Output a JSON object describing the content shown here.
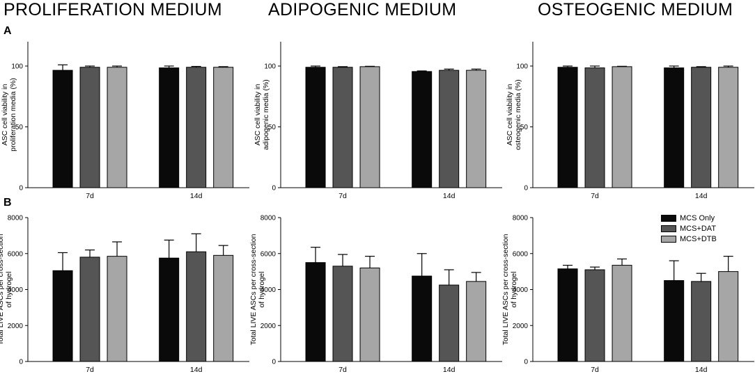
{
  "column_titles": [
    "PROLIFERATION MEDIUM",
    "ADIPOGENIC MEDIUM",
    "OSTEOGENIC MEDIUM"
  ],
  "panel_labels": [
    "A",
    "B"
  ],
  "legend": {
    "entries": [
      {
        "label": "MCS Only",
        "color": "#0a0a0a"
      },
      {
        "label": "MCS+DAT",
        "color": "#555555"
      },
      {
        "label": "MCS+DTB",
        "color": "#a6a6a6"
      }
    ]
  },
  "chart_data": [
    {
      "type": "bar",
      "row": "A",
      "column": "PROLIFERATION MEDIUM",
      "ylabel": [
        "ASC cell viability in",
        "proliferation media (%)"
      ],
      "categories": [
        "7d",
        "14d"
      ],
      "ylim": [
        0,
        120
      ],
      "yticks": [
        0,
        50,
        100
      ],
      "series": [
        {
          "name": "MCS Only",
          "values": [
            96.5,
            98.5
          ],
          "errors": [
            4.5,
            1.5
          ]
        },
        {
          "name": "MCS+DAT",
          "values": [
            99,
            99
          ],
          "errors": [
            1,
            0.7
          ]
        },
        {
          "name": "MCS+DTB",
          "values": [
            99,
            99
          ],
          "errors": [
            1,
            0.5
          ]
        }
      ]
    },
    {
      "type": "bar",
      "row": "A",
      "column": "ADIPOGENIC MEDIUM",
      "ylabel": [
        "ASC cell viability in",
        "adipogenic media (%)"
      ],
      "categories": [
        "7d",
        "14d"
      ],
      "ylim": [
        0,
        120
      ],
      "yticks": [
        0,
        50,
        100
      ],
      "series": [
        {
          "name": "MCS Only",
          "values": [
            99,
            95.5
          ],
          "errors": [
            1,
            0.5
          ]
        },
        {
          "name": "MCS+DAT",
          "values": [
            99,
            96.5
          ],
          "errors": [
            0.5,
            1
          ]
        },
        {
          "name": "MCS+DTB",
          "values": [
            99.5,
            96.5
          ],
          "errors": [
            0.3,
            1
          ]
        }
      ]
    },
    {
      "type": "bar",
      "row": "A",
      "column": "OSTEOGENIC MEDIUM",
      "ylabel": [
        "ASC cell viability in",
        "osteogenic media (%)"
      ],
      "categories": [
        "7d",
        "14d"
      ],
      "ylim": [
        0,
        120
      ],
      "yticks": [
        0,
        50,
        100
      ],
      "series": [
        {
          "name": "MCS Only",
          "values": [
            99,
            98.5
          ],
          "errors": [
            1,
            1.5
          ]
        },
        {
          "name": "MCS+DAT",
          "values": [
            98.5,
            99
          ],
          "errors": [
            1.5,
            0.5
          ]
        },
        {
          "name": "MCS+DTB",
          "values": [
            99.5,
            99
          ],
          "errors": [
            0.3,
            1
          ]
        }
      ]
    },
    {
      "type": "bar",
      "row": "B",
      "column": "PROLIFERATION MEDIUM",
      "ylabel": [
        "Total LIVE ASCs per cross-section",
        "of hydrogel"
      ],
      "categories": [
        "7d",
        "14d"
      ],
      "ylim": [
        0,
        8000
      ],
      "yticks": [
        0,
        2000,
        4000,
        6000,
        8000
      ],
      "series": [
        {
          "name": "MCS Only",
          "values": [
            5050,
            5750
          ],
          "errors": [
            1000,
            1000
          ]
        },
        {
          "name": "MCS+DAT",
          "values": [
            5800,
            6100
          ],
          "errors": [
            400,
            1000
          ]
        },
        {
          "name": "MCS+DTB",
          "values": [
            5850,
            5900
          ],
          "errors": [
            800,
            550
          ]
        }
      ]
    },
    {
      "type": "bar",
      "row": "B",
      "column": "ADIPOGENIC MEDIUM",
      "ylabel": [
        "Total LIVE ASCs per cross-section",
        "of hydrogel"
      ],
      "categories": [
        "7d",
        "14d"
      ],
      "ylim": [
        0,
        8000
      ],
      "yticks": [
        0,
        2000,
        4000,
        6000,
        8000
      ],
      "series": [
        {
          "name": "MCS Only",
          "values": [
            5500,
            4750
          ],
          "errors": [
            850,
            1250
          ]
        },
        {
          "name": "MCS+DAT",
          "values": [
            5300,
            4250
          ],
          "errors": [
            650,
            850
          ]
        },
        {
          "name": "MCS+DTB",
          "values": [
            5200,
            4450
          ],
          "errors": [
            650,
            500
          ]
        }
      ]
    },
    {
      "type": "bar",
      "row": "B",
      "column": "OSTEOGENIC MEDIUM",
      "ylabel": [
        "Total LIVE ASCs per cross-section",
        "of hydrogel"
      ],
      "categories": [
        "7d",
        "14d"
      ],
      "ylim": [
        0,
        8000
      ],
      "yticks": [
        0,
        2000,
        4000,
        6000,
        8000
      ],
      "series": [
        {
          "name": "MCS Only",
          "values": [
            5150,
            4500
          ],
          "errors": [
            200,
            1100
          ]
        },
        {
          "name": "MCS+DAT",
          "values": [
            5100,
            4450
          ],
          "errors": [
            150,
            450
          ]
        },
        {
          "name": "MCS+DTB",
          "values": [
            5350,
            5000
          ],
          "errors": [
            350,
            850
          ]
        }
      ]
    }
  ]
}
